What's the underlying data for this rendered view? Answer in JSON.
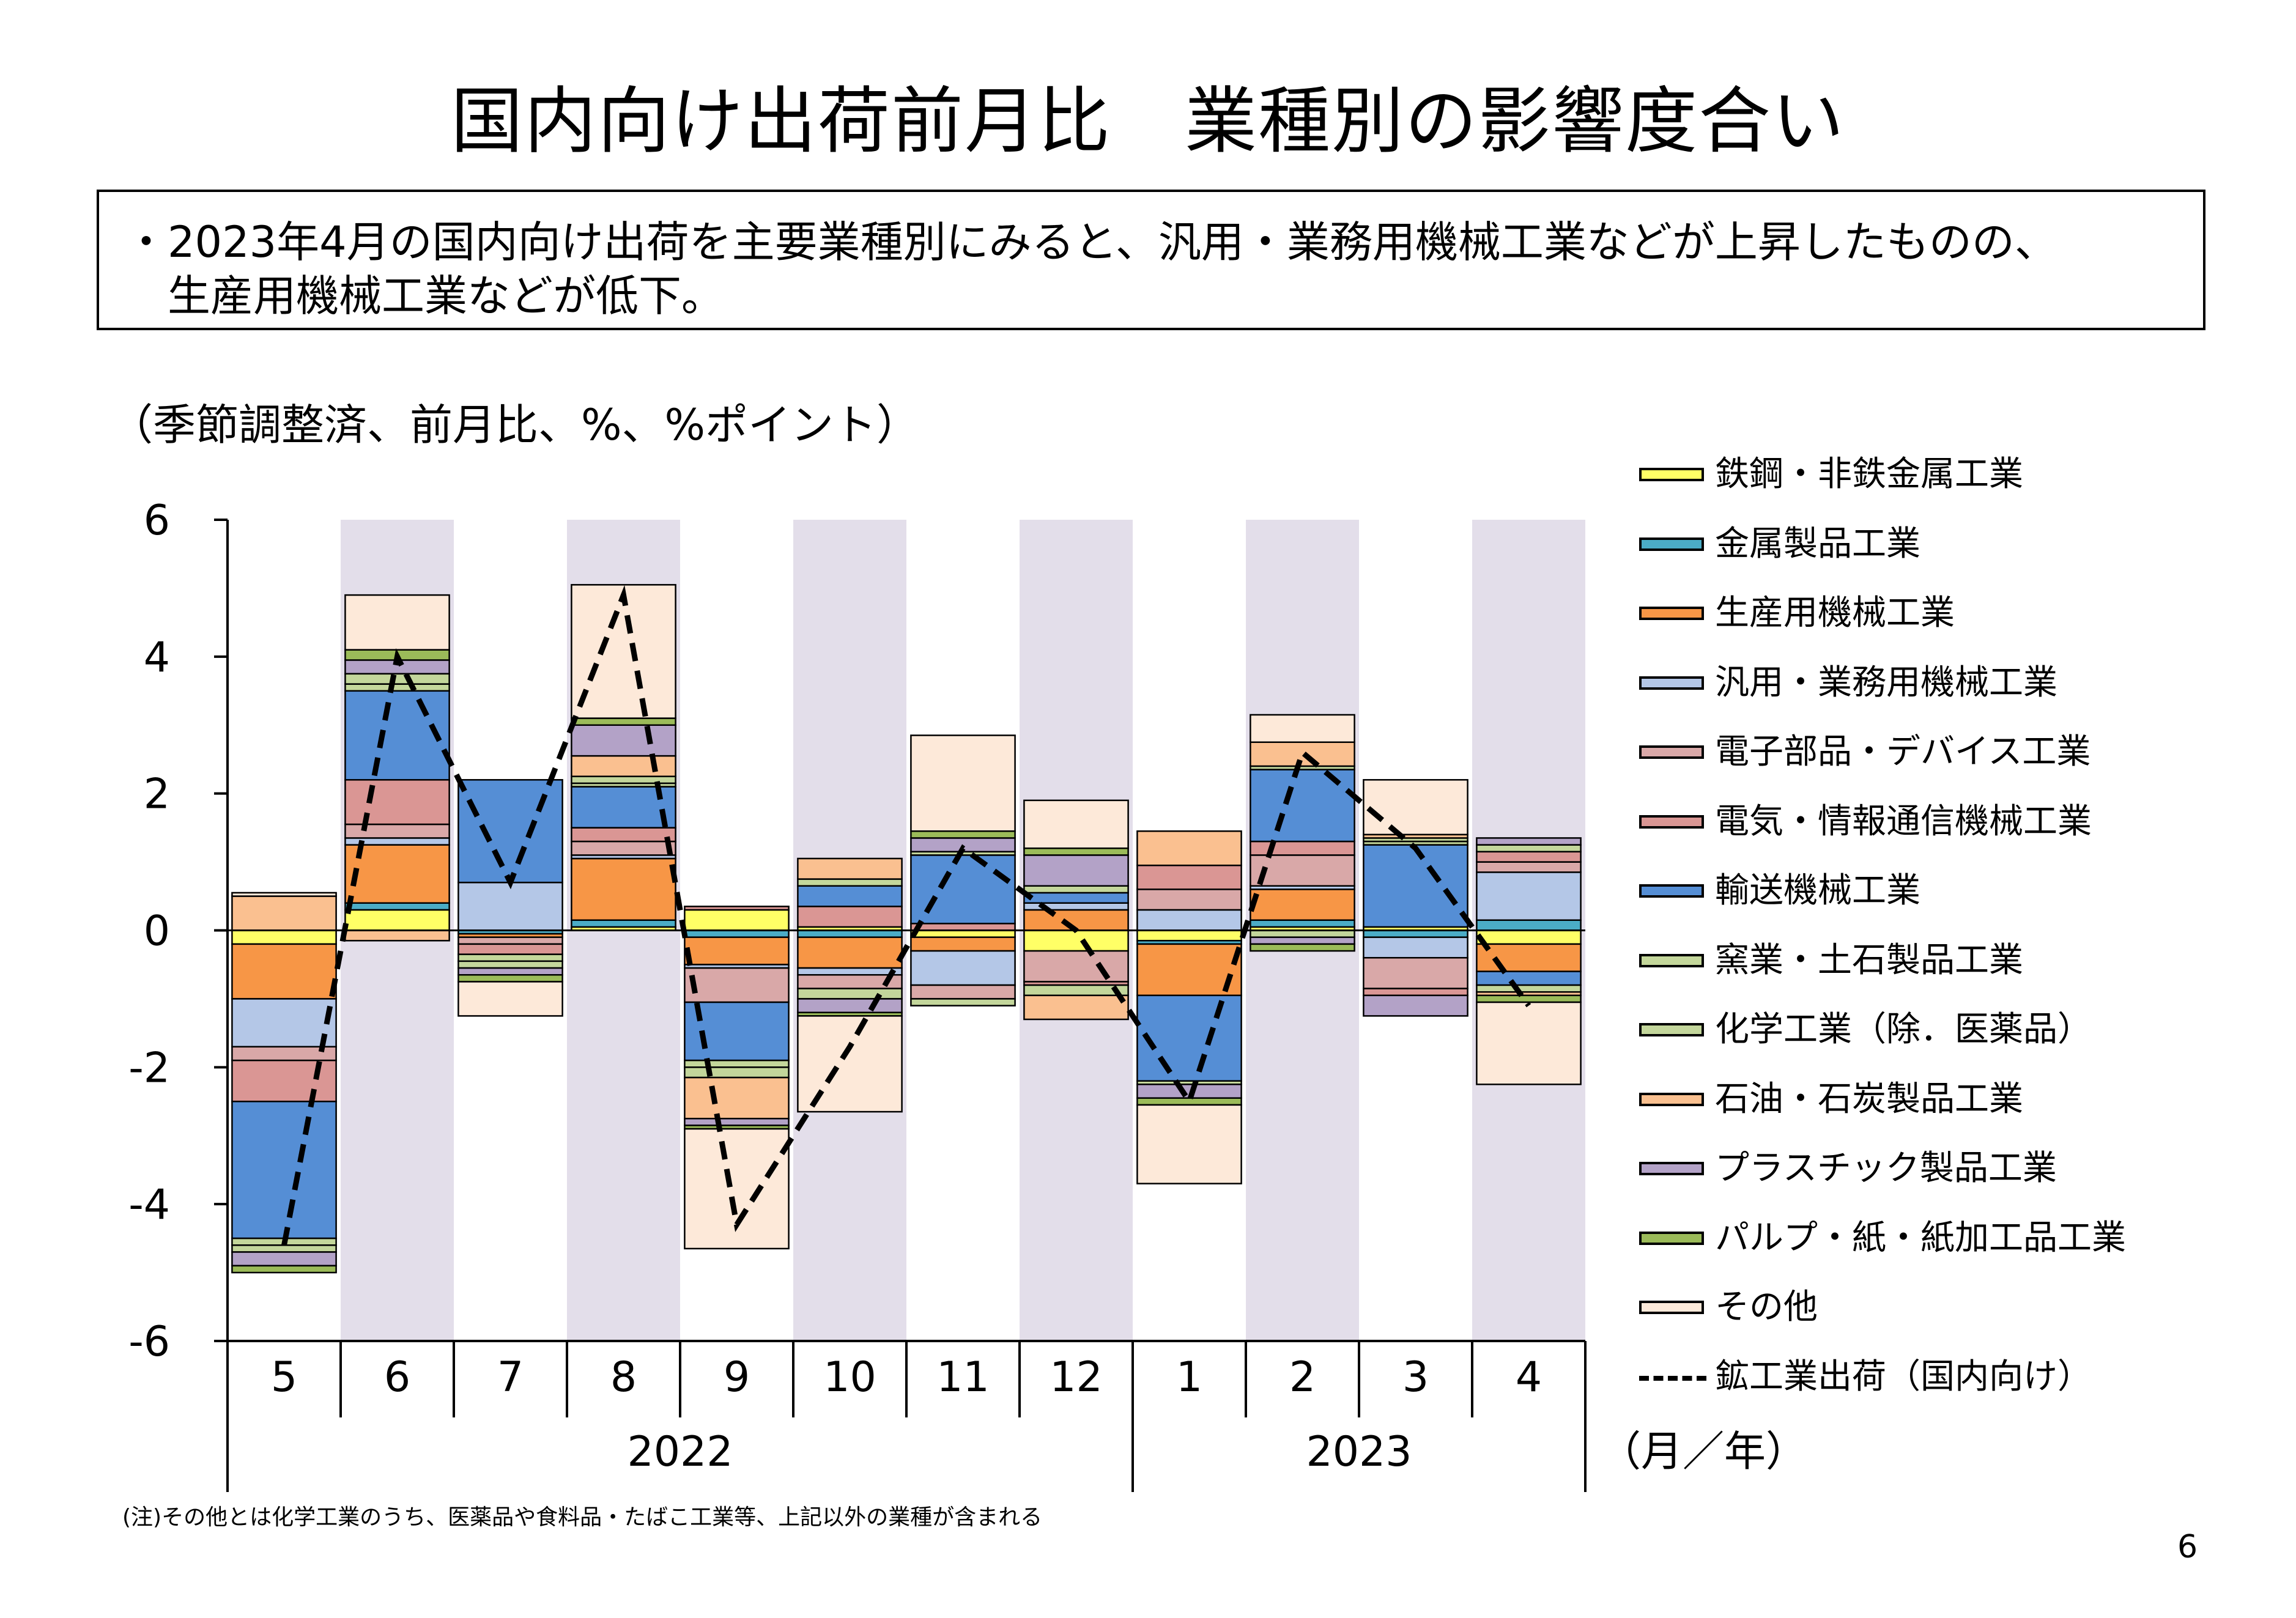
{
  "title": "国内向け出荷前月比　業種別の影響度合い",
  "summary": {
    "line1": "・2023年4月の国内向け出荷を主要業種別にみると、汎用・業務用機械工業などが上昇したものの、",
    "line2": "生産用機械工業などが低下。"
  },
  "unit_label": "（季節調整済、前月比、%、%ポイント）",
  "axis_unit_label": "（月／年）",
  "footnote": "(注)その他とは化学工業のうち、医薬品や食料品・たばこ工業等、上記以外の業種が含まれる",
  "page_number": "6",
  "colors": {
    "shade": "#e3deea",
    "line": "#000000"
  },
  "chart_data": {
    "type": "bar",
    "stacked": true,
    "title": "国内向け出荷前月比　業種別の影響度合い",
    "ylabel": "（季節調整済、前月比、%、%ポイント）",
    "xlabel": "（月／年）",
    "ylim": [
      -6,
      6
    ],
    "yticks": [
      "6",
      "4",
      "2",
      "0",
      "-2",
      "-4",
      "-6"
    ],
    "yticks_values": [
      6,
      4,
      2,
      0,
      -2,
      -4,
      -6
    ],
    "categories": [
      "5",
      "6",
      "7",
      "8",
      "9",
      "10",
      "11",
      "12",
      "1",
      "2",
      "3",
      "4"
    ],
    "shaded_categories": [
      1,
      3,
      5,
      7,
      9,
      11
    ],
    "year_groups": [
      {
        "label": "2022",
        "start": 0,
        "end": 7
      },
      {
        "label": "2023",
        "start": 8,
        "end": 11
      }
    ],
    "series": [
      {
        "name": "鉄鋼・非鉄金属工業",
        "color": "#ffff66",
        "values": [
          -0.2,
          0.3,
          0,
          0.05,
          0.3,
          0.05,
          -0.1,
          -0.3,
          -0.15,
          0.05,
          0.05,
          -0.2
        ]
      },
      {
        "name": "金属製品工業",
        "color": "#4bacc6",
        "values": [
          0,
          0.1,
          -0.05,
          0.1,
          -0.1,
          -0.1,
          0,
          0,
          -0.05,
          0.1,
          -0.1,
          0.15
        ]
      },
      {
        "name": "生産用機械工業",
        "color": "#f79646",
        "values": [
          -0.8,
          0.85,
          -0.05,
          0.9,
          -0.4,
          -0.45,
          -0.2,
          0.3,
          -0.75,
          0.45,
          0,
          -0.4
        ]
      },
      {
        "name": "汎用・業務用機械工業",
        "color": "#b4c7e7",
        "values": [
          -0.7,
          0.1,
          0.7,
          0.05,
          -0.05,
          -0.1,
          -0.5,
          0.1,
          0.3,
          0.05,
          -0.3,
          0.7
        ]
      },
      {
        "name": "電子部品・デバイス工業",
        "color": "#d9a8a8",
        "values": [
          -0.2,
          0.2,
          -0.1,
          0.2,
          -0.5,
          -0.2,
          -0.2,
          -0.45,
          0.3,
          0.45,
          -0.45,
          0.15
        ]
      },
      {
        "name": "電気・情報通信機械工業",
        "color": "#da9694",
        "values": [
          -0.6,
          0.65,
          -0.15,
          0.2,
          0.05,
          0.3,
          0.1,
          -0.05,
          0.35,
          0.2,
          -0.1,
          0.15
        ]
      },
      {
        "name": "輸送機械工業",
        "color": "#558ed5",
        "values": [
          -2.0,
          1.3,
          1.5,
          0.6,
          -0.85,
          0.3,
          1.0,
          0.15,
          -1.25,
          1.05,
          1.2,
          -0.2
        ]
      },
      {
        "name": "窯業・土石製品工業",
        "color": "#c4d79b",
        "values": [
          -0.1,
          0.1,
          -0.1,
          0.05,
          -0.1,
          0.1,
          0.05,
          0.1,
          -0.05,
          0.05,
          0.05,
          -0.1
        ]
      },
      {
        "name": "化学工業（除．医薬品）",
        "color": "#c3d69b",
        "values": [
          -0.1,
          0.15,
          -0.1,
          0.1,
          -0.15,
          -0.15,
          -0.1,
          -0.15,
          0,
          -0.1,
          0.05,
          0.1
        ]
      },
      {
        "name": "石油・石炭製品工業",
        "color": "#fac090",
        "values": [
          0.5,
          -0.15,
          0,
          0.3,
          -0.6,
          0.3,
          0,
          -0.35,
          0.5,
          0.35,
          0.05,
          -0.05
        ]
      },
      {
        "name": "プラスチック製品工業",
        "color": "#b3a2c7",
        "values": [
          -0.2,
          0.2,
          -0.1,
          0.45,
          -0.1,
          -0.2,
          0.2,
          0.45,
          -0.2,
          -0.1,
          -0.3,
          0.1
        ]
      },
      {
        "name": "パルプ・紙・紙加工品工業",
        "color": "#9bbb59",
        "values": [
          -0.1,
          0.15,
          -0.1,
          0.1,
          -0.05,
          -0.05,
          0.1,
          0.1,
          -0.1,
          -0.1,
          0,
          -0.1
        ]
      },
      {
        "name": "その他",
        "color": "#fde9d9",
        "values": [
          0.05,
          0.8,
          -0.5,
          1.95,
          -1.75,
          -1.4,
          1.4,
          0.7,
          -1.15,
          0.4,
          0.8,
          -1.2
        ]
      }
    ],
    "line_series": {
      "name": "鉱工業出荷（国内向け）",
      "style": "dashed",
      "values": [
        -4.6,
        4.0,
        0.7,
        4.9,
        -4.3,
        -1.7,
        1.2,
        0,
        -2.5,
        2.6,
        1.2,
        -1.1
      ]
    }
  }
}
